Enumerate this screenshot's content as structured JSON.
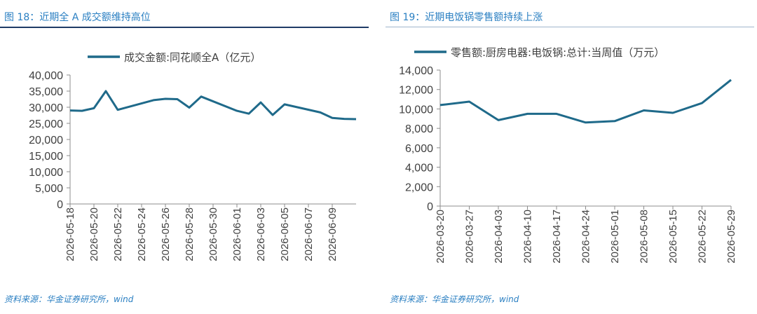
{
  "charts": [
    {
      "figure_title": "图 18：近期全 A 成交额维持高位",
      "source": "资料来源：华金证券研究所，wind",
      "color": "#1F6A8A"
    },
    {
      "figure_title": "图 19：近期电饭锅零售额持续上涨",
      "source": "资料来源：华金证券研究所，wind",
      "color": "#1F6A8A"
    }
  ],
  "chart_data": [
    {
      "type": "line",
      "title": "",
      "xlabel": "",
      "ylabel": "",
      "ylim": [
        0,
        40000
      ],
      "yticks": [
        "40,000",
        "35,000",
        "30,000",
        "25,000",
        "20,000",
        "15,000",
        "10,000",
        "5,000",
        "0"
      ],
      "ytick_values": [
        40000,
        35000,
        30000,
        25000,
        20000,
        15000,
        10000,
        5000,
        0
      ],
      "x": [
        "2026-05-18",
        "2026-05-19",
        "2026-05-20",
        "2026-05-21",
        "2026-05-22",
        "2026-05-25",
        "2026-05-26",
        "2026-05-27",
        "2026-05-28",
        "2026-05-29",
        "2026-06-01",
        "2026-06-02",
        "2026-06-03",
        "2026-06-04",
        "2026-06-05",
        "2026-06-08",
        "2026-06-09",
        "2026-06-10",
        "2026-06-11"
      ],
      "xticks": [
        "2026-05-18",
        "2026-05-20",
        "2026-05-22",
        "2026-05-24",
        "2026-05-26",
        "2026-05-28",
        "2026-05-30",
        "2026-06-01",
        "2026-06-03",
        "2026-06-05",
        "2026-06-07",
        "2026-06-09"
      ],
      "grid": false,
      "legend": "top-center",
      "series": [
        {
          "name": "成交金额:同花顺全A（亿元）",
          "values": [
            29000,
            28900,
            29700,
            35000,
            29200,
            32200,
            32600,
            32500,
            29900,
            33300,
            28900,
            28000,
            31500,
            27600,
            30900,
            28400,
            26700,
            26400,
            26300
          ]
        }
      ]
    },
    {
      "type": "line",
      "title": "",
      "xlabel": "",
      "ylabel": "",
      "ylim": [
        0,
        14000
      ],
      "yticks": [
        "14,000",
        "12,000",
        "10,000",
        "8,000",
        "6,000",
        "4,000",
        "2,000",
        "0"
      ],
      "ytick_values": [
        14000,
        12000,
        10000,
        8000,
        6000,
        4000,
        2000,
        0
      ],
      "x": [
        "2026-03-20",
        "2026-03-27",
        "2026-04-03",
        "2026-04-10",
        "2026-04-17",
        "2026-04-24",
        "2026-05-01",
        "2026-05-08",
        "2026-05-15",
        "2026-05-22",
        "2026-05-29"
      ],
      "xticks": [
        "2026-03-20",
        "2026-03-27",
        "2026-04-03",
        "2026-04-10",
        "2026-04-17",
        "2026-04-24",
        "2026-05-01",
        "2026-05-08",
        "2026-05-15",
        "2026-05-22",
        "2026-05-29"
      ],
      "grid": false,
      "legend": "top-center",
      "series": [
        {
          "name": "零售额:厨房电器:电饭锅:总计:当周值（万元）",
          "values": [
            10400,
            10750,
            8850,
            9500,
            9500,
            8600,
            8750,
            9850,
            9600,
            10600,
            13000
          ]
        }
      ]
    }
  ]
}
